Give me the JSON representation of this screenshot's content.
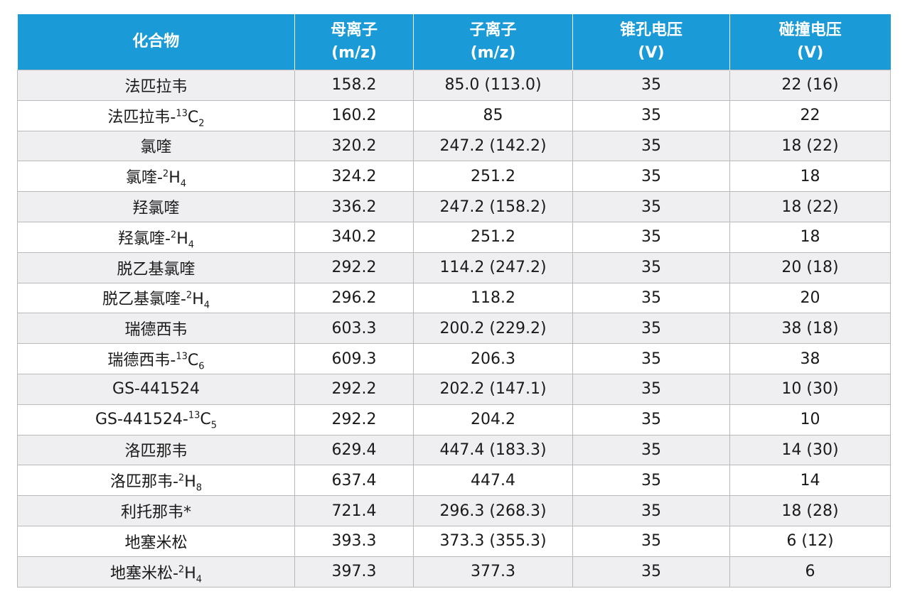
{
  "header": {
    "compound": "化合物",
    "parent_ion": "母离子",
    "parent_ion_unit": "(m/z)",
    "product_ion": "子离子",
    "product_ion_unit": "(m/z)",
    "cone_voltage": "锥孔电压",
    "cone_voltage_unit": "(V)",
    "collision_voltage": "碰撞电压",
    "collision_voltage_unit": "(V)"
  },
  "rows": [
    {
      "name": "法匹拉韦",
      "sup": "",
      "sub": "",
      "parent": "158.2",
      "product": "85.0 (113.0)",
      "cone": "35",
      "collision": "22 (16)"
    },
    {
      "name": "法匹拉韦-",
      "sup": "13",
      "elem": "C",
      "sub": "2",
      "parent": "160.2",
      "product": "85",
      "cone": "35",
      "collision": "22"
    },
    {
      "name": "氯喹",
      "sup": "",
      "sub": "",
      "parent": "320.2",
      "product": "247.2 (142.2)",
      "cone": "35",
      "collision": "18 (22)"
    },
    {
      "name": "氯喹-",
      "sup": "2",
      "elem": "H",
      "sub": "4",
      "parent": "324.2",
      "product": "251.2",
      "cone": "35",
      "collision": "18"
    },
    {
      "name": "羟氯喹",
      "sup": "",
      "sub": "",
      "parent": "336.2",
      "product": "247.2 (158.2)",
      "cone": "35",
      "collision": "18 (22)"
    },
    {
      "name": "羟氯喹-",
      "sup": "2",
      "elem": "H",
      "sub": "4",
      "parent": "340.2",
      "product": "251.2",
      "cone": "35",
      "collision": "18"
    },
    {
      "name": "脱乙基氯喹",
      "sup": "",
      "sub": "",
      "parent": "292.2",
      "product": "114.2 (247.2)",
      "cone": "35",
      "collision": "20 (18)"
    },
    {
      "name": "脱乙基氯喹-",
      "sup": "2",
      "elem": "H",
      "sub": "4",
      "parent": "296.2",
      "product": "118.2",
      "cone": "35",
      "collision": "20"
    },
    {
      "name": "瑞德西韦",
      "sup": "",
      "sub": "",
      "parent": "603.3",
      "product": "200.2 (229.2)",
      "cone": "35",
      "collision": "38 (18)"
    },
    {
      "name": "瑞德西韦-",
      "sup": "13",
      "elem": "C",
      "sub": "6",
      "parent": "609.3",
      "product": "206.3",
      "cone": "35",
      "collision": "38"
    },
    {
      "name": "GS-441524",
      "sup": "",
      "sub": "",
      "parent": "292.2",
      "product": "202.2 (147.1)",
      "cone": "35",
      "collision": "10 (30)"
    },
    {
      "name": "GS-441524-",
      "sup": "13",
      "elem": "C",
      "sub": "5",
      "parent": "292.2",
      "product": "204.2",
      "cone": "35",
      "collision": "10"
    },
    {
      "name": "洛匹那韦",
      "sup": "",
      "sub": "",
      "parent": "629.4",
      "product": "447.4 (183.3)",
      "cone": "35",
      "collision": "14 (30)"
    },
    {
      "name": "洛匹那韦-",
      "sup": "2",
      "elem": "H",
      "sub": "8",
      "parent": "637.4",
      "product": "447.4",
      "cone": "35",
      "collision": "14"
    },
    {
      "name": "利托那韦*",
      "sup": "",
      "sub": "",
      "parent": "721.4",
      "product": "296.3 (268.3)",
      "cone": "35",
      "collision": "18 (28)"
    },
    {
      "name": "地塞米松",
      "sup": "",
      "sub": "",
      "parent": "393.3",
      "product": "373.3 (355.3)",
      "cone": "35",
      "collision": "6 (12)"
    },
    {
      "name": "地塞米松-",
      "sup": "2",
      "elem": "H",
      "sub": "4",
      "parent": "397.3",
      "product": "377.3",
      "cone": "35",
      "collision": "6"
    }
  ],
  "colors": {
    "header_bg": "#1a9ad6",
    "header_text": "#ffffff",
    "odd_row_bg": "#efeff1",
    "even_row_bg": "#ffffff",
    "border": "#b9b9b9"
  }
}
